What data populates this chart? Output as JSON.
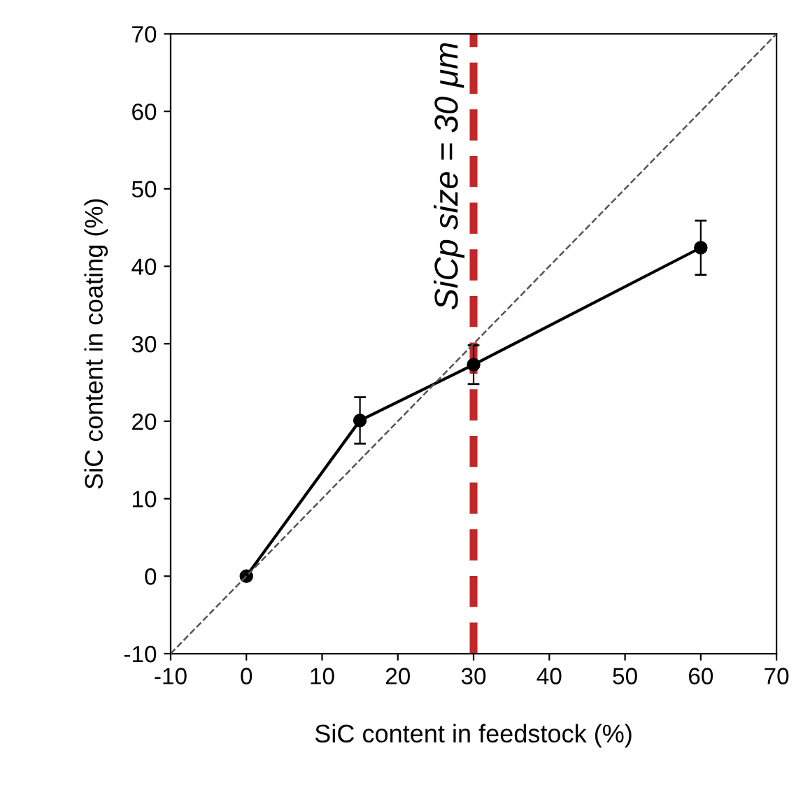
{
  "chart_data": {
    "type": "line",
    "xlabel": "SiC content in feedstock (%)",
    "ylabel": "SiC content in coating (%)",
    "x": [
      0,
      15,
      30,
      60
    ],
    "xlim": [
      -10,
      70
    ],
    "ylim": [
      -10,
      70
    ],
    "xticks": [
      -10,
      0,
      10,
      20,
      30,
      40,
      50,
      60,
      70
    ],
    "yticks": [
      -10,
      0,
      10,
      20,
      30,
      40,
      50,
      60,
      70
    ],
    "series": [
      {
        "color": "#000000",
        "values": [
          0,
          20.1,
          27.3,
          42.4
        ],
        "errors": [
          null,
          3,
          2.5,
          3.5
        ],
        "marker": "circle",
        "line_style": "solid"
      },
      {
        "color": "#555555",
        "x": [
          -10,
          70
        ],
        "values": [
          -10,
          70
        ],
        "marker": "none",
        "line_style": "dashed"
      }
    ],
    "ref_lines": [
      {
        "axis": "x",
        "value": 30,
        "label": "SiCp size = 30 μm",
        "color": "#c0282a",
        "line_style": "dashed"
      }
    ],
    "grid": false,
    "legend": false
  }
}
